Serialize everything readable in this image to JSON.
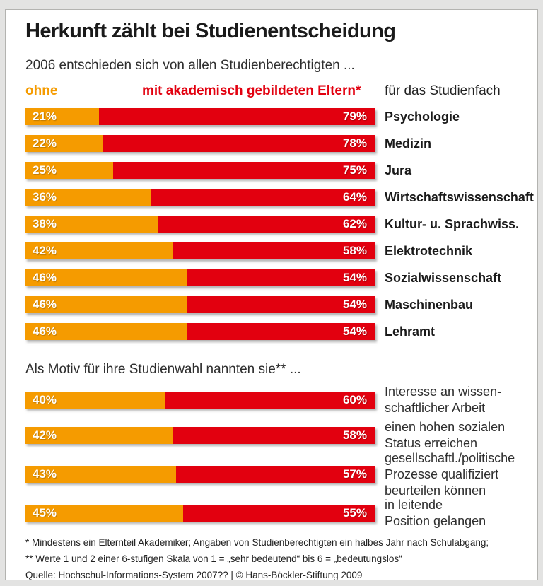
{
  "page": {
    "title": "Herkunft zählt bei Studienentscheidung",
    "subtitle": "2006 entschieden sich von allen Studienberechtigten ..."
  },
  "legend": {
    "ohne_label": "ohne",
    "mit_label": "mit akademisch gebildeten Eltern*",
    "right_label": "für das Studienfach"
  },
  "colors": {
    "orange": "#F59B00",
    "red": "#E2000F"
  },
  "section1": {
    "rows": [
      {
        "ohne": "21%",
        "mit": "79%",
        "label": "Psychologie"
      },
      {
        "ohne": "22%",
        "mit": "78%",
        "label": "Medizin"
      },
      {
        "ohne": "25%",
        "mit": "75%",
        "label": "Jura"
      },
      {
        "ohne": "36%",
        "mit": "64%",
        "label": "Wirtschaftswissenschaft"
      },
      {
        "ohne": "38%",
        "mit": "62%",
        "label": "Kultur- u. Sprachwiss."
      },
      {
        "ohne": "42%",
        "mit": "58%",
        "label": "Elektrotechnik"
      },
      {
        "ohne": "46%",
        "mit": "54%",
        "label": "Sozialwissenschaft"
      },
      {
        "ohne": "46%",
        "mit": "54%",
        "label": "Maschinenbau"
      },
      {
        "ohne": "46%",
        "mit": "54%",
        "label": "Lehramt"
      }
    ]
  },
  "section2": {
    "heading": "Als Motiv für ihre Studienwahl nannten sie** ...",
    "rows": [
      {
        "ohne": "40%",
        "mit": "60%",
        "lines": [
          "Interesse an wissen-",
          "schaftlicher Arbeit"
        ]
      },
      {
        "ohne": "42%",
        "mit": "58%",
        "lines": [
          "einen hohen sozialen",
          "Status erreichen"
        ]
      },
      {
        "ohne": "43%",
        "mit": "57%",
        "lines": [
          "gesellschaftl./politische",
          "Prozesse qualifiziert",
          "beurteilen können"
        ]
      },
      {
        "ohne": "45%",
        "mit": "55%",
        "lines": [
          "in leitende",
          "Position gelangen"
        ]
      }
    ]
  },
  "footnotes": {
    "line1": "* Mindestens ein Elternteil Akademiker; Angaben von Studienberechtigten ein halbes Jahr nach Schulabgang;",
    "line2": "** Werte 1 und 2 einer 6-stufigen Skala von 1 = „sehr bedeutend“ bis 6 = „bedeutungslos“",
    "line3": "Quelle: Hochschul-Informations-System 2007?? | © Hans-Böckler-Stiftung 2009"
  },
  "chart_data": [
    {
      "type": "bar",
      "subtype": "horizontal-stacked-100percent",
      "title": "2006 entschieden sich von allen Studienberechtigten ... für das Studienfach",
      "categories": [
        "Psychologie",
        "Medizin",
        "Jura",
        "Wirtschaftswissenschaft",
        "Kultur- u. Sprachwiss.",
        "Elektrotechnik",
        "Sozialwissenschaft",
        "Maschinenbau",
        "Lehramt"
      ],
      "series": [
        {
          "name": "ohne akademisch gebildete Eltern",
          "color": "#F59B00",
          "values": [
            21,
            22,
            25,
            36,
            38,
            42,
            46,
            46,
            46
          ]
        },
        {
          "name": "mit akademisch gebildeten Eltern",
          "color": "#E2000F",
          "values": [
            79,
            78,
            75,
            64,
            62,
            58,
            54,
            54,
            54
          ]
        }
      ],
      "unit": "%",
      "xlim": [
        0,
        100
      ],
      "grid": false,
      "legend_position": "top"
    },
    {
      "type": "bar",
      "subtype": "horizontal-stacked-100percent",
      "title": "Als Motiv für ihre Studienwahl nannten sie ...",
      "categories": [
        "Interesse an wissenschaftlicher Arbeit",
        "einen hohen sozialen Status erreichen",
        "gesellschaftl./politische Prozesse qualifiziert beurteilen können",
        "in leitende Position gelangen"
      ],
      "series": [
        {
          "name": "ohne akademisch gebildete Eltern",
          "color": "#F59B00",
          "values": [
            40,
            42,
            43,
            45
          ]
        },
        {
          "name": "mit akademisch gebildeten Eltern",
          "color": "#E2000F",
          "values": [
            60,
            58,
            57,
            55
          ]
        }
      ],
      "unit": "%",
      "xlim": [
        0,
        100
      ],
      "grid": false
    }
  ]
}
